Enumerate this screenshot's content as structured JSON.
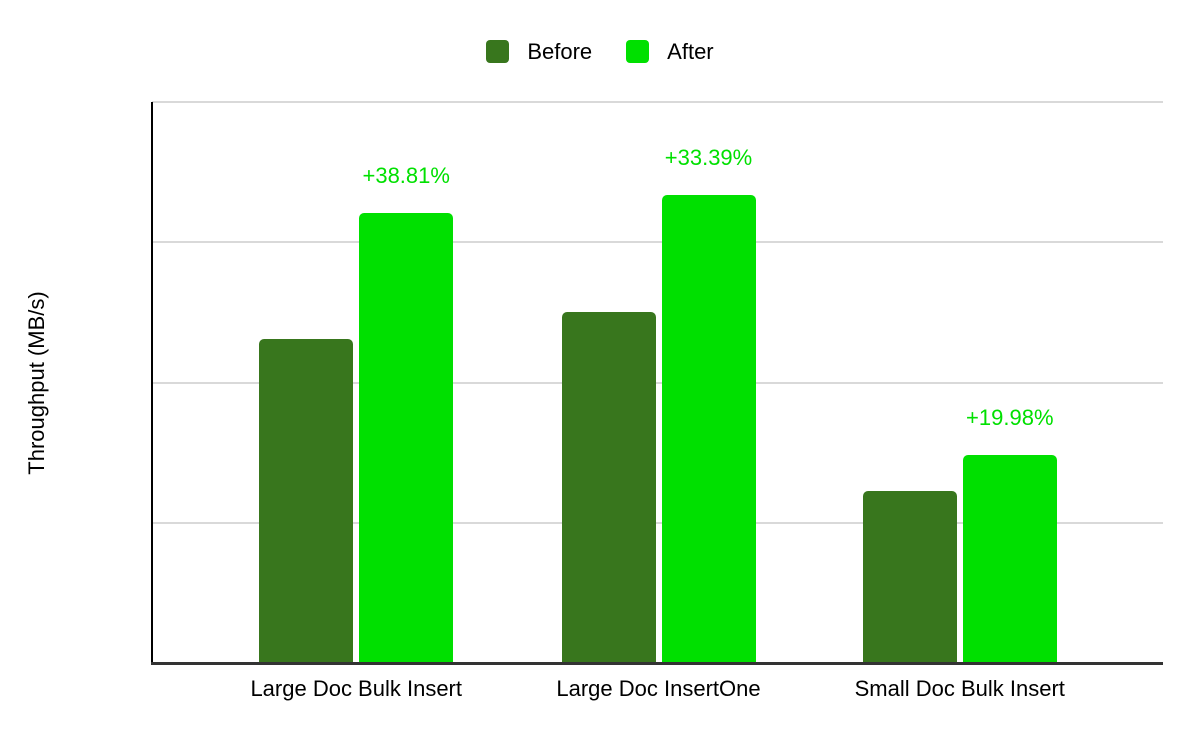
{
  "colors": {
    "background": "#ffffff",
    "before": "#38761d",
    "after": "#00e000",
    "percent_label": "#00e000",
    "gridline": "#d9d9d9",
    "axis_x": "#333333",
    "axis_y": "#000000",
    "text": "#000000"
  },
  "legend": {
    "position": "top-center",
    "items": [
      {
        "label": "Before",
        "color": "#38761d"
      },
      {
        "label": "After",
        "color": "#00e000"
      }
    ]
  },
  "chart_data": {
    "type": "bar",
    "title": "",
    "xlabel": "",
    "ylabel": "Throughput (MB/s)",
    "categories": [
      "Large Doc Bulk Insert",
      "Large Doc InsertOne",
      "Small Doc Bulk Insert"
    ],
    "series": [
      {
        "name": "Before",
        "color": "#38761d",
        "values": [
          231,
          250,
          123
        ]
      },
      {
        "name": "After",
        "color": "#00e000",
        "values": [
          321,
          334,
          148
        ],
        "bar_labels": [
          "+38.81%",
          "+33.39%",
          "+19.98%"
        ]
      }
    ],
    "ylim": [
      0,
      400
    ],
    "gridlines": [
      100,
      200,
      300,
      400
    ],
    "y_tick_labels_visible": false,
    "grid": true,
    "legend_position": "top-center",
    "bar_label_color": "#00e000"
  }
}
